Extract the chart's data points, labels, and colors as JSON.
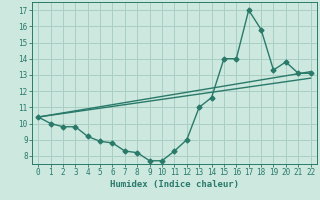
{
  "xlabel": "Humidex (Indice chaleur)",
  "bg_color": "#cce8df",
  "line_color": "#2a7a6a",
  "grid_color": "#aacfc5",
  "xlim": [
    -0.5,
    22.5
  ],
  "ylim": [
    7.5,
    17.5
  ],
  "yticks": [
    8,
    9,
    10,
    11,
    12,
    13,
    14,
    15,
    16,
    17
  ],
  "xticks": [
    0,
    1,
    2,
    3,
    4,
    5,
    6,
    7,
    8,
    9,
    10,
    11,
    12,
    13,
    14,
    15,
    16,
    17,
    18,
    19,
    20,
    21,
    22
  ],
  "curve_x": [
    0,
    1,
    2,
    3,
    4,
    5,
    6,
    7,
    8,
    9,
    10,
    11,
    12,
    13,
    14,
    15,
    16,
    17,
    18,
    19,
    20,
    21,
    22
  ],
  "curve_y": [
    10.4,
    10.0,
    9.8,
    9.8,
    9.2,
    8.9,
    8.8,
    8.3,
    8.2,
    7.7,
    7.7,
    8.3,
    9.0,
    11.0,
    11.6,
    14.0,
    14.0,
    17.0,
    15.8,
    13.3,
    13.8,
    13.1,
    13.1
  ],
  "line1_x": [
    0,
    22
  ],
  "line1_y": [
    10.4,
    13.2
  ],
  "line2_x": [
    0,
    22
  ],
  "line2_y": [
    10.4,
    12.8
  ],
  "lw": 1.0,
  "ms": 2.5
}
